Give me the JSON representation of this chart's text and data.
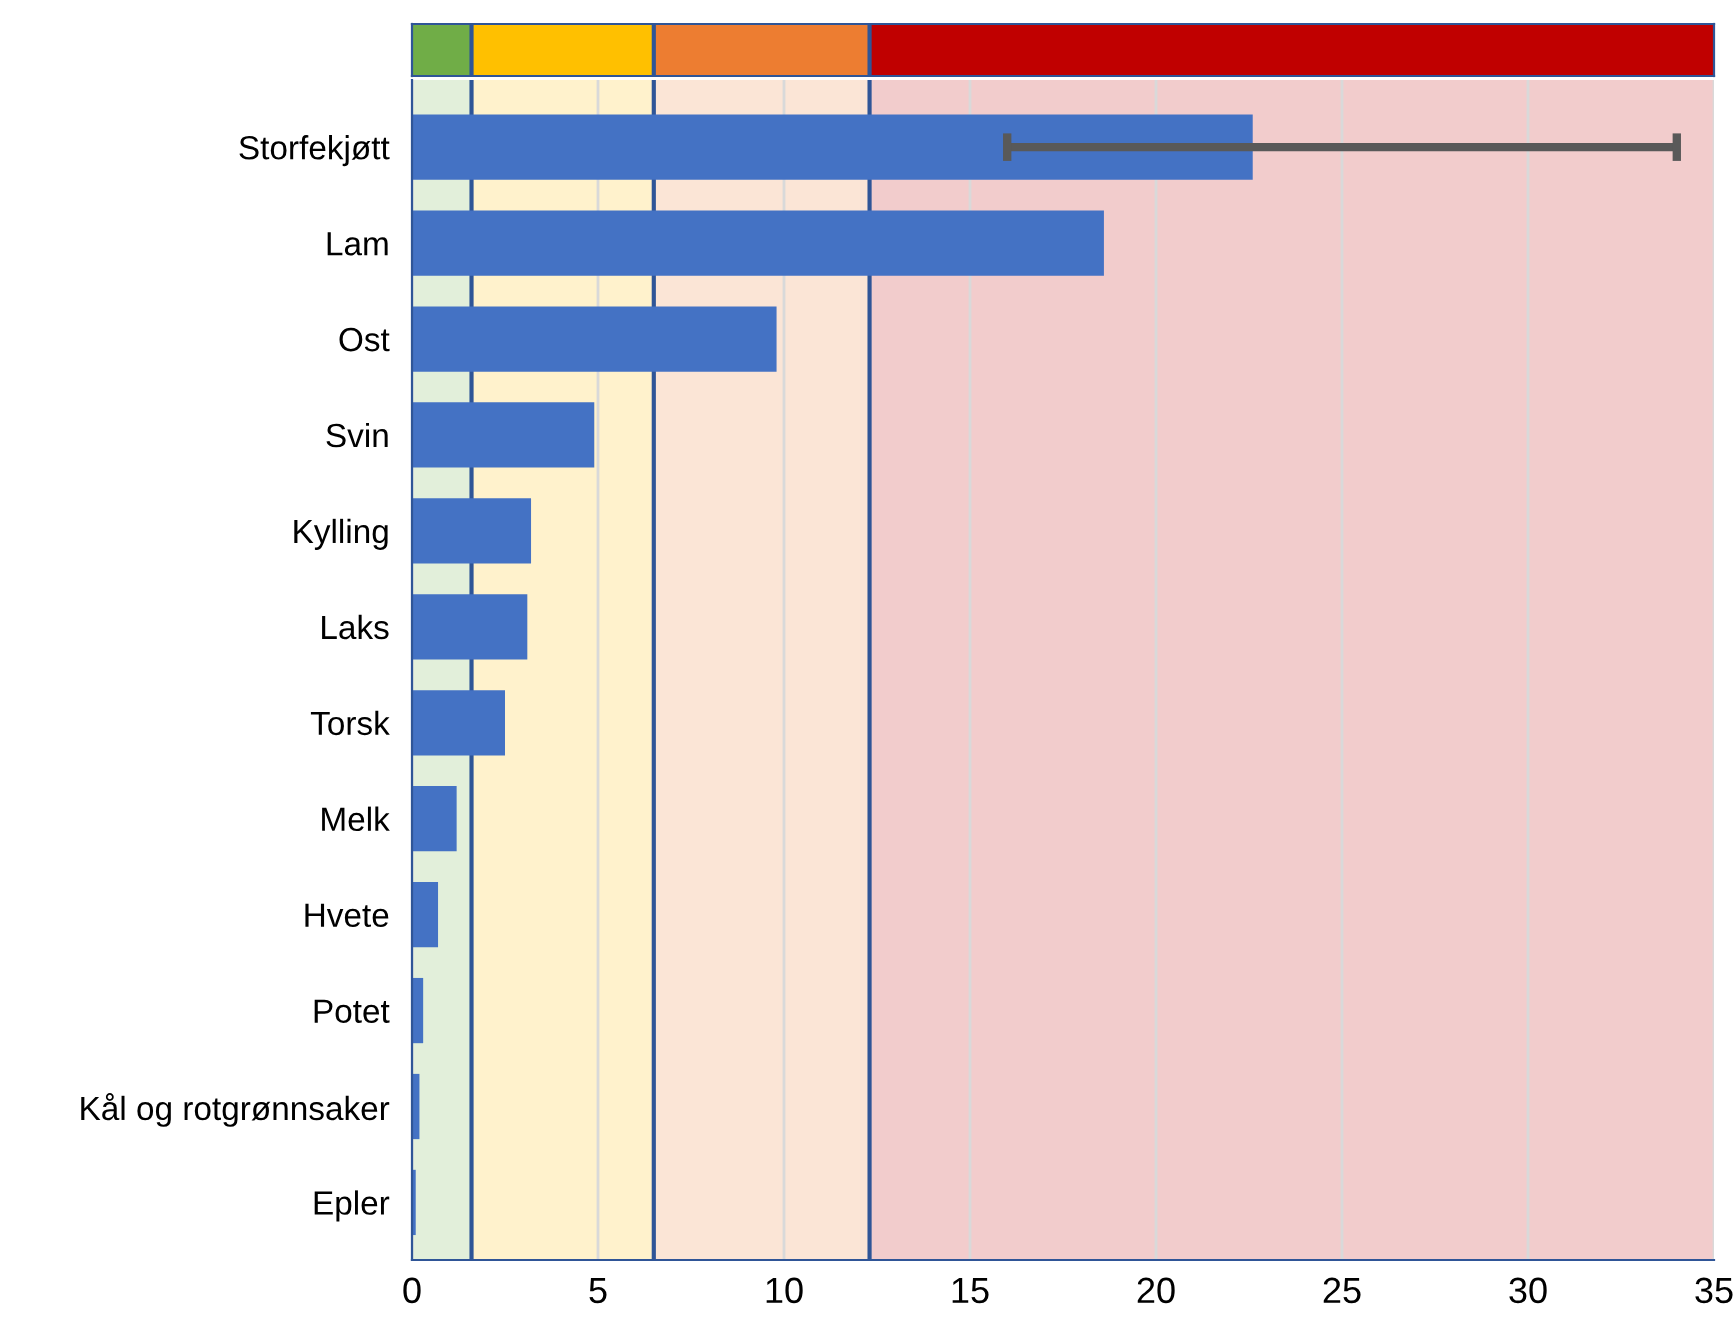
{
  "chart_data": {
    "type": "bar",
    "orientation": "horizontal",
    "categories": [
      "Storfekjøtt",
      "Lam",
      "Ost",
      "Svin",
      "Kylling",
      "Laks",
      "Torsk",
      "Melk",
      "Hvete",
      "Potet",
      "Kål og rotgrønnsaker",
      "Epler"
    ],
    "values": [
      22.6,
      18.6,
      9.8,
      4.9,
      3.2,
      3.1,
      2.5,
      1.2,
      0.7,
      0.3,
      0.2,
      0.1
    ],
    "errors": [
      [
        16.0,
        34.0
      ],
      null,
      null,
      null,
      null,
      null,
      null,
      null,
      null,
      null,
      null,
      null
    ],
    "color": "#4472c4",
    "xlim": [
      0,
      35
    ],
    "xticks": [
      0,
      5,
      10,
      15,
      20,
      25,
      30,
      35
    ],
    "grid": "x",
    "bands": [
      {
        "axis": "x",
        "from": 0,
        "to": 1.6,
        "color": "#e2efda"
      },
      {
        "axis": "x",
        "from": 1.6,
        "to": 6.5,
        "color": "#fff2cc"
      },
      {
        "axis": "x",
        "from": 6.5,
        "to": 12.3,
        "color": "#fbe5d6"
      },
      {
        "axis": "x",
        "from": 12.3,
        "to": 35,
        "color": "#f2cccc"
      }
    ],
    "ref_lines": [
      {
        "axis": "x",
        "value": 1.6,
        "color": "#2f5597"
      },
      {
        "axis": "x",
        "value": 6.5,
        "color": "#2f5597"
      },
      {
        "axis": "x",
        "value": 12.3,
        "color": "#2f5597"
      }
    ]
  }
}
